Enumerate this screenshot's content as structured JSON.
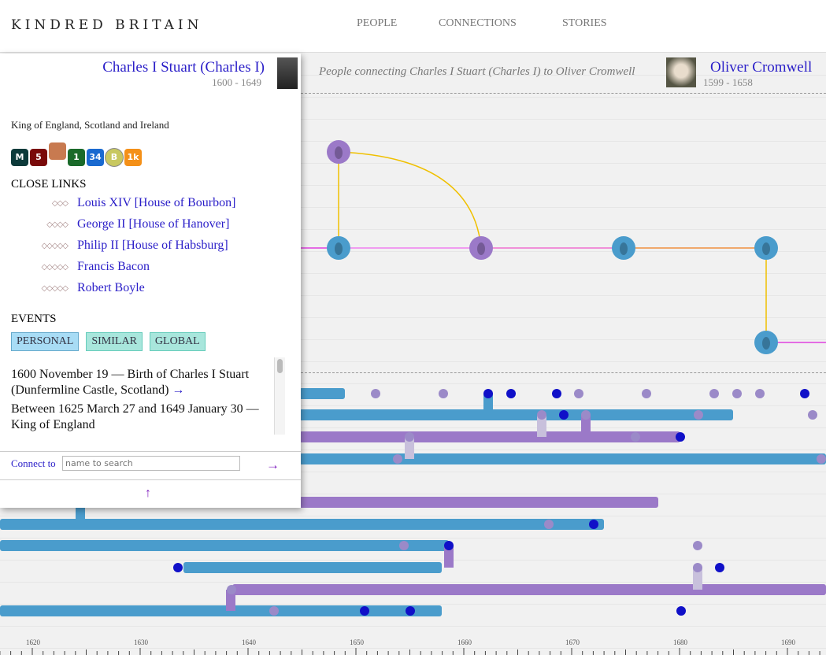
{
  "header": {
    "logo": "KINDRED BRITAIN",
    "nav": [
      "PEOPLE",
      "CONNECTIONS",
      "STORIES"
    ]
  },
  "path": {
    "from_name": "Charles I Stuart (Charles I)",
    "from_dates": "1600 - 1649",
    "caption": "People connecting Charles I Stuart (Charles I) to Oliver Cromwell",
    "to_name": "Oliver Cromwell",
    "to_dates": "1599 - 1658"
  },
  "panel": {
    "description": "King of England, Scotland and Ireland",
    "badges": [
      {
        "label": "M",
        "color": "#0c3a3a"
      },
      {
        "label": "5",
        "color": "#7a0a0a"
      },
      {
        "label": "",
        "color": "#c87a50"
      },
      {
        "label": "1",
        "color": "#1a6a2a"
      },
      {
        "label": "34",
        "color": "#1a6ad0"
      },
      {
        "label": "B",
        "color": "#c8c860"
      },
      {
        "label": "1k",
        "color": "#f49018"
      }
    ],
    "close_links_title": "CLOSE LINKS",
    "close_links": [
      {
        "deg": "◇◇◇",
        "name": "Louis XIV [House of Bourbon]"
      },
      {
        "deg": "◇◇◇◇",
        "name": "George II [House of Hanover]"
      },
      {
        "deg": "◇◇◇◇◇",
        "name": "Philip II [House of Habsburg]"
      },
      {
        "deg": "◇◇◇◇◇",
        "name": "Francis Bacon"
      },
      {
        "deg": "◇◇◇◇◇",
        "name": "Robert Boyle"
      }
    ],
    "events_title": "EVENTS",
    "event_tabs": [
      "PERSONAL",
      "SIMILAR",
      "GLOBAL"
    ],
    "events": [
      "1600 November 19 — Birth of Charles I Stuart (Dunfermline Castle, Scotland)",
      "Between 1625 March 27 and 1649 January 30 — King of England"
    ],
    "event_arrow": "→",
    "connect_label": "Connect to",
    "connect_placeholder": "name to search",
    "go": "→",
    "up": "↑"
  },
  "axis": {
    "ticks": [
      "1620",
      "1630",
      "1640",
      "1650",
      "1660",
      "1670",
      "1680",
      "1690"
    ]
  }
}
